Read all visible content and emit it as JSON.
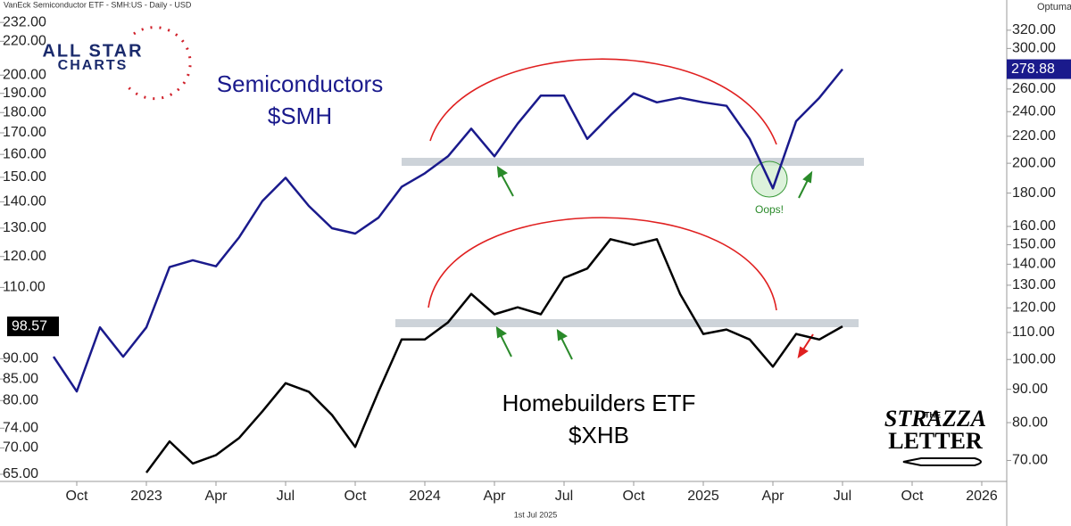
{
  "chart_data": {
    "type": "line",
    "title": "VanEck Semiconductor ETF - SMH:US - Daily - USD",
    "footer": "1st Jul 2025",
    "brand": "Optuma",
    "logo_left": [
      "ALL STAR",
      "CHARTS"
    ],
    "logo_right": [
      "THE",
      "STRAZZA",
      "LETTER"
    ],
    "annotations": {
      "smh": [
        "Semiconductors",
        "$SMH"
      ],
      "xhb": [
        "Homebuilders ETF",
        "$XHB"
      ],
      "oops": "Oops!"
    },
    "x": [
      "2022-09",
      "2022-10",
      "2022-11",
      "2022-12",
      "2023-01",
      "2023-02",
      "2023-03",
      "2023-04",
      "2023-05",
      "2023-06",
      "2023-07",
      "2023-08",
      "2023-09",
      "2023-10",
      "2023-11",
      "2023-12",
      "2024-01",
      "2024-02",
      "2024-03",
      "2024-04",
      "2024-05",
      "2024-06",
      "2024-07",
      "2024-08",
      "2024-09",
      "2024-10",
      "2024-11",
      "2024-12",
      "2025-01",
      "2025-02",
      "2025-03",
      "2025-04",
      "2025-05",
      "2025-06",
      "2025-07"
    ],
    "xlim": [
      "2022-09",
      "2026-02"
    ],
    "xticks": [
      {
        "value": "2022-10",
        "label": "Oct"
      },
      {
        "value": "2023-01",
        "label": "2023"
      },
      {
        "value": "2023-04",
        "label": "Apr"
      },
      {
        "value": "2023-07",
        "label": "Jul"
      },
      {
        "value": "2023-10",
        "label": "Oct"
      },
      {
        "value": "2024-01",
        "label": "2024"
      },
      {
        "value": "2024-04",
        "label": "Apr"
      },
      {
        "value": "2024-07",
        "label": "Jul"
      },
      {
        "value": "2024-10",
        "label": "Oct"
      },
      {
        "value": "2025-01",
        "label": "2025"
      },
      {
        "value": "2025-04",
        "label": "Apr"
      },
      {
        "value": "2025-07",
        "label": "Jul"
      },
      {
        "value": "2025-10",
        "label": "Oct"
      },
      {
        "value": "2026-01",
        "label": "2026"
      }
    ],
    "series": [
      {
        "name": "XHB",
        "color": "#000000",
        "axis": "y",
        "values": [
          null,
          null,
          null,
          null,
          65.3,
          71.3,
          67,
          68.6,
          72,
          77.6,
          84,
          82,
          76.8,
          70.2,
          82,
          95,
          95,
          99.7,
          108,
          102,
          104,
          102,
          113,
          116,
          126,
          124,
          126,
          108,
          96.5,
          97.7,
          95,
          88,
          96.5,
          95,
          98.57
        ]
      },
      {
        "name": "SMH",
        "color": "#1a1a8c",
        "axis": "y2",
        "values": [
          101,
          89.3,
          112,
          101,
          112,
          138.6,
          142,
          139,
          154,
          175,
          190,
          172,
          159,
          156,
          165,
          184,
          193,
          205,
          226,
          205,
          230,
          254,
          254,
          218,
          237,
          256,
          248,
          252,
          248,
          245,
          218,
          183,
          232,
          252,
          278.88
        ]
      }
    ],
    "ylim": [
      63.7,
      241
    ],
    "y_log": true,
    "yticks": [
      {
        "value": 65,
        "label": "65.00"
      },
      {
        "value": 70,
        "label": "70.00"
      },
      {
        "value": 74,
        "label": "74.00"
      },
      {
        "value": 80,
        "label": "80.00"
      },
      {
        "value": 85,
        "label": "85.00"
      },
      {
        "value": 90,
        "label": "90.00"
      },
      {
        "value": 110,
        "label": "110.00"
      },
      {
        "value": 120,
        "label": "120.00"
      },
      {
        "value": 130,
        "label": "130.00"
      },
      {
        "value": 140,
        "label": "140.00"
      },
      {
        "value": 150,
        "label": "150.00"
      },
      {
        "value": 160,
        "label": "160.00"
      },
      {
        "value": 170,
        "label": "170.00"
      },
      {
        "value": 180,
        "label": "180.00"
      },
      {
        "value": 190,
        "label": "190.00"
      },
      {
        "value": 200,
        "label": "200.00"
      },
      {
        "value": 220,
        "label": "220.00"
      },
      {
        "value": 232,
        "label": "232.00"
      }
    ],
    "y2lim": [
      65,
      345
    ],
    "y2_log": true,
    "y2ticks": [
      {
        "value": 70,
        "label": "70.00"
      },
      {
        "value": 80,
        "label": "80.00"
      },
      {
        "value": 90,
        "label": "90.00"
      },
      {
        "value": 100,
        "label": "100.00"
      },
      {
        "value": 110,
        "label": "110.00"
      },
      {
        "value": 120,
        "label": "120.00"
      },
      {
        "value": 130,
        "label": "130.00"
      },
      {
        "value": 140,
        "label": "140.00"
      },
      {
        "value": 150,
        "label": "150.00"
      },
      {
        "value": 160,
        "label": "160.00"
      },
      {
        "value": 180,
        "label": "180.00"
      },
      {
        "value": 200,
        "label": "200.00"
      },
      {
        "value": 220,
        "label": "220.00"
      },
      {
        "value": 240,
        "label": "240.00"
      },
      {
        "value": 260,
        "label": "260.00"
      },
      {
        "value": 300,
        "label": "300.00"
      },
      {
        "value": 320,
        "label": "320.00"
      }
    ],
    "grid": false
  }
}
